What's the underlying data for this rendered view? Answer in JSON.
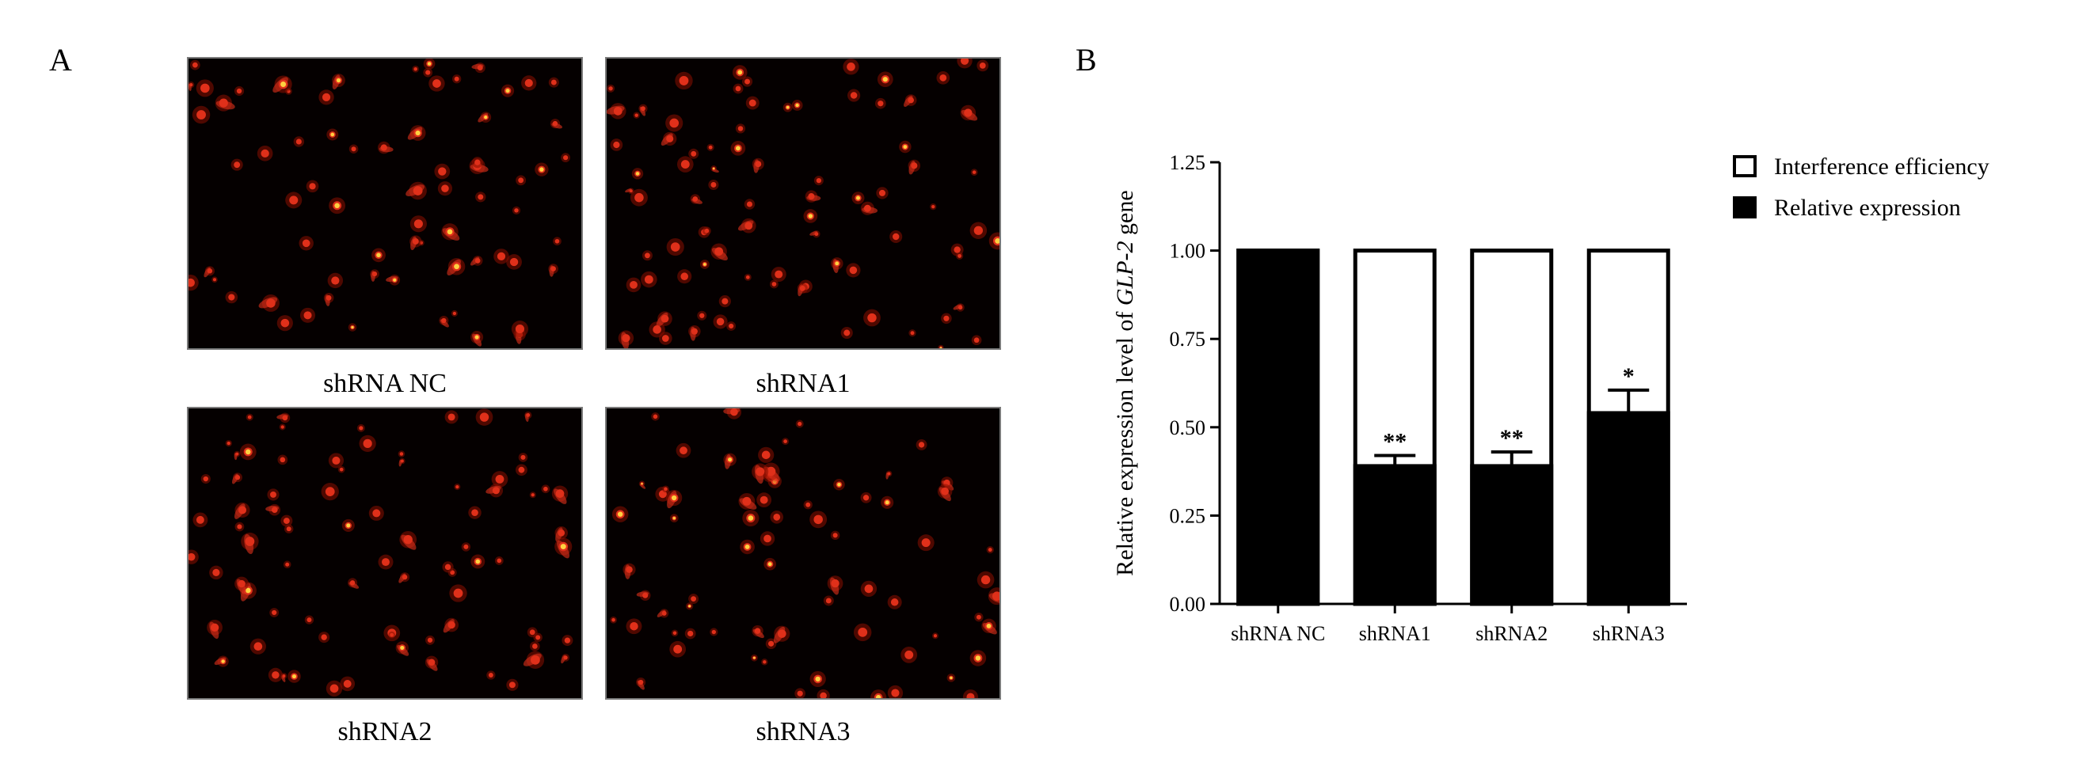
{
  "panels": {
    "a_label": "A",
    "b_label": "B"
  },
  "micrographs": [
    {
      "caption": "shRNA NC",
      "cells": 70,
      "seed": 11
    },
    {
      "caption": "shRNA1",
      "cells": 85,
      "seed": 23
    },
    {
      "caption": "shRNA2",
      "cells": 80,
      "seed": 37
    },
    {
      "caption": "shRNA3",
      "cells": 72,
      "seed": 53
    }
  ],
  "colors": {
    "fluorescence_core": "#ffd040",
    "fluorescence_mid": "#e0301a",
    "fluorescence_glow": "#8a0e00",
    "bar_fill": "#000000",
    "bar_empty": "#ffffff"
  },
  "chart_data": {
    "type": "bar",
    "stacked": true,
    "categories": [
      "shRNA NC",
      "shRNA1",
      "shRNA2",
      "shRNA3"
    ],
    "series": [
      {
        "name": "Relative expression",
        "values": [
          1.0,
          0.39,
          0.39,
          0.54
        ],
        "color": "#000000"
      },
      {
        "name": "Interference efficiency",
        "values": [
          0.0,
          0.61,
          0.61,
          0.46
        ],
        "color": "#ffffff"
      }
    ],
    "error_bars": [
      null,
      0.03,
      0.04,
      0.065
    ],
    "significance": [
      "",
      "**",
      "**",
      "*"
    ],
    "ylabel_prefix": "Relative expression level of ",
    "ylabel_gene": "GLP-2",
    "ylabel_suffix": " gene",
    "ylim": [
      0,
      1.25
    ],
    "yticks": [
      "0.00",
      "0.25",
      "0.50",
      "0.75",
      "1.00",
      "1.25"
    ],
    "legend": [
      "Interference efficiency",
      "Relative expression"
    ],
    "legend_position": "top-right",
    "grid": false
  }
}
